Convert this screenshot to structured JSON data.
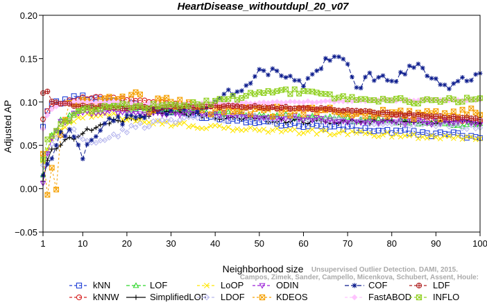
{
  "chart_data": {
    "type": "line",
    "title": "HeartDisease_withoutdupl_20_v07",
    "xlabel": "Neighborhood size",
    "ylabel": "Adjusted AP",
    "xlim": [
      1,
      100
    ],
    "ylim": [
      -0.05,
      0.2
    ],
    "x_ticks": [
      1,
      10,
      20,
      30,
      40,
      50,
      60,
      70,
      80,
      90,
      100
    ],
    "y_ticks": [
      -0.05,
      0.0,
      0.05,
      0.1,
      0.15,
      0.2
    ],
    "y_tick_labels": [
      "−0.05",
      "0.00",
      "0.05",
      "0.10",
      "0.15",
      "0.20"
    ],
    "grid": false,
    "legend_position": "bottom",
    "watermark": "Campos, Zimek, Sander, Campello, Micenkova, Schubert, Assent, Houle: Unsupervised Outlier Detection. DAMI, 2015.",
    "series": [
      {
        "name": "kNN",
        "color": "#1f3fd6",
        "marker": "square",
        "dash": "4,3",
        "anchors": [
          [
            1,
            0.07
          ],
          [
            2,
            0.092
          ],
          [
            3,
            0.098
          ],
          [
            5,
            0.1
          ],
          [
            8,
            0.104
          ],
          [
            10,
            0.106
          ],
          [
            15,
            0.103
          ],
          [
            20,
            0.098
          ],
          [
            25,
            0.093
          ],
          [
            30,
            0.089
          ],
          [
            40,
            0.082
          ],
          [
            50,
            0.078
          ],
          [
            60,
            0.073
          ],
          [
            70,
            0.07
          ],
          [
            80,
            0.066
          ],
          [
            90,
            0.063
          ],
          [
            100,
            0.061
          ]
        ],
        "jitter": 0.003
      },
      {
        "name": "kNNW",
        "color": "#d62020",
        "marker": "circle",
        "dash": "4,3",
        "anchors": [
          [
            1,
            0.08
          ],
          [
            2,
            0.09
          ],
          [
            3,
            0.095
          ],
          [
            5,
            0.099
          ],
          [
            8,
            0.102
          ],
          [
            10,
            0.104
          ],
          [
            15,
            0.105
          ],
          [
            20,
            0.103
          ],
          [
            25,
            0.1
          ],
          [
            30,
            0.098
          ],
          [
            40,
            0.096
          ],
          [
            50,
            0.094
          ],
          [
            60,
            0.092
          ],
          [
            70,
            0.089
          ],
          [
            80,
            0.085
          ],
          [
            90,
            0.081
          ],
          [
            100,
            0.078
          ]
        ],
        "jitter": 0.0015
      },
      {
        "name": "LOF",
        "color": "#2fd62a",
        "marker": "triangle",
        "dash": "5,3",
        "anchors": [
          [
            1,
            0.016
          ],
          [
            2,
            0.045
          ],
          [
            3,
            0.06
          ],
          [
            5,
            0.078
          ],
          [
            8,
            0.088
          ],
          [
            10,
            0.092
          ],
          [
            15,
            0.095
          ],
          [
            20,
            0.093
          ],
          [
            25,
            0.092
          ],
          [
            30,
            0.09
          ],
          [
            40,
            0.087
          ],
          [
            50,
            0.085
          ],
          [
            60,
            0.083
          ],
          [
            70,
            0.08
          ],
          [
            80,
            0.078
          ],
          [
            90,
            0.075
          ],
          [
            100,
            0.074
          ]
        ],
        "jitter": 0.0025
      },
      {
        "name": "SimplifiedLOF",
        "color": "#000000",
        "marker": "plus",
        "dash": "",
        "anchors": [
          [
            1,
            0.01
          ],
          [
            2,
            0.03
          ],
          [
            3,
            0.045
          ],
          [
            5,
            0.052
          ],
          [
            8,
            0.06
          ],
          [
            10,
            0.065
          ],
          [
            15,
            0.075
          ],
          [
            20,
            0.08
          ],
          [
            25,
            0.085
          ],
          [
            30,
            0.088
          ],
          [
            40,
            0.083
          ],
          [
            50,
            0.08
          ],
          [
            60,
            0.078
          ],
          [
            70,
            0.077
          ],
          [
            80,
            0.077
          ],
          [
            90,
            0.077
          ],
          [
            100,
            0.078
          ]
        ],
        "jitter": 0.003
      },
      {
        "name": "LoOP",
        "color": "#ffe600",
        "marker": "x",
        "dash": "4,3",
        "anchors": [
          [
            1,
            0.03
          ],
          [
            2,
            0.045
          ],
          [
            3,
            0.055
          ],
          [
            5,
            0.07
          ],
          [
            8,
            0.08
          ],
          [
            10,
            0.083
          ],
          [
            15,
            0.085
          ],
          [
            20,
            0.082
          ],
          [
            25,
            0.078
          ],
          [
            30,
            0.075
          ],
          [
            40,
            0.07
          ],
          [
            50,
            0.068
          ],
          [
            60,
            0.066
          ],
          [
            70,
            0.064
          ],
          [
            80,
            0.062
          ],
          [
            90,
            0.06
          ],
          [
            100,
            0.059
          ]
        ],
        "jitter": 0.003
      },
      {
        "name": "LDOF",
        "color": "#b8b8ee",
        "marker": "diamond",
        "dash": "4,3",
        "anchors": [
          [
            1,
            0.025
          ],
          [
            2,
            0.04
          ],
          [
            3,
            0.05
          ],
          [
            5,
            0.06
          ],
          [
            8,
            0.068
          ],
          [
            10,
            0.055
          ],
          [
            15,
            0.055
          ],
          [
            20,
            0.068
          ],
          [
            25,
            0.075
          ],
          [
            30,
            0.08
          ],
          [
            40,
            0.082
          ],
          [
            50,
            0.082
          ],
          [
            60,
            0.08
          ],
          [
            70,
            0.078
          ],
          [
            80,
            0.076
          ],
          [
            90,
            0.074
          ],
          [
            100,
            0.072
          ]
        ],
        "jitter": 0.004
      },
      {
        "name": "ODIN",
        "color": "#9a20d6",
        "marker": "triangle-down",
        "dash": "4,3",
        "anchors": [
          [
            1,
            0.006
          ],
          [
            2,
            0.04
          ],
          [
            3,
            0.06
          ],
          [
            5,
            0.075
          ],
          [
            8,
            0.085
          ],
          [
            10,
            0.088
          ],
          [
            15,
            0.09
          ],
          [
            20,
            0.089
          ],
          [
            25,
            0.088
          ],
          [
            30,
            0.087
          ],
          [
            40,
            0.085
          ],
          [
            50,
            0.083
          ],
          [
            60,
            0.081
          ],
          [
            70,
            0.079
          ],
          [
            80,
            0.077
          ],
          [
            90,
            0.076
          ],
          [
            100,
            0.075
          ]
        ],
        "jitter": 0.003
      },
      {
        "name": "KDEOS",
        "color": "#f5a000",
        "marker": "square-x",
        "dash": "3,3",
        "anchors": [
          [
            1,
            0.04
          ],
          [
            2,
            -0.008
          ],
          [
            3,
            0.02
          ],
          [
            4,
            0.005
          ],
          [
            5,
            0.06
          ],
          [
            7,
            0.095
          ],
          [
            10,
            0.1
          ],
          [
            12,
            0.09
          ],
          [
            15,
            0.11
          ],
          [
            20,
            0.1
          ],
          [
            22,
            0.115
          ],
          [
            25,
            0.09
          ],
          [
            28,
            0.105
          ],
          [
            30,
            0.1
          ],
          [
            35,
            0.095
          ],
          [
            40,
            0.09
          ],
          [
            50,
            0.088
          ],
          [
            60,
            0.09
          ],
          [
            70,
            0.088
          ],
          [
            80,
            0.087
          ],
          [
            90,
            0.085
          ],
          [
            100,
            0.087
          ]
        ],
        "jitter": 0.006
      },
      {
        "name": "COF",
        "color": "#0a1a8c",
        "marker": "asterisk",
        "dash": "6,3",
        "anchors": [
          [
            1,
            0.015
          ],
          [
            3,
            0.04
          ],
          [
            5,
            0.06
          ],
          [
            8,
            0.065
          ],
          [
            10,
            0.04
          ],
          [
            12,
            0.06
          ],
          [
            15,
            0.075
          ],
          [
            20,
            0.08
          ],
          [
            25,
            0.088
          ],
          [
            30,
            0.092
          ],
          [
            35,
            0.092
          ],
          [
            40,
            0.1
          ],
          [
            45,
            0.115
          ],
          [
            50,
            0.132
          ],
          [
            54,
            0.137
          ],
          [
            57,
            0.128
          ],
          [
            60,
            0.118
          ],
          [
            63,
            0.138
          ],
          [
            66,
            0.148
          ],
          [
            68,
            0.15
          ],
          [
            70,
            0.14
          ],
          [
            72,
            0.118
          ],
          [
            75,
            0.13
          ],
          [
            78,
            0.125
          ],
          [
            82,
            0.13
          ],
          [
            85,
            0.14
          ],
          [
            88,
            0.135
          ],
          [
            92,
            0.12
          ],
          [
            95,
            0.122
          ],
          [
            98,
            0.125
          ],
          [
            100,
            0.128
          ]
        ],
        "jitter": 0.006
      },
      {
        "name": "FastABOD",
        "color": "#ffc4ff",
        "marker": "diamond-filled",
        "dash": "4,3",
        "anchors": [
          [
            1,
            0.07
          ],
          [
            2,
            0.085
          ],
          [
            3,
            0.092
          ],
          [
            5,
            0.097
          ],
          [
            8,
            0.1
          ],
          [
            10,
            0.1
          ],
          [
            15,
            0.1
          ],
          [
            20,
            0.099
          ],
          [
            25,
            0.098
          ],
          [
            30,
            0.097
          ],
          [
            40,
            0.098
          ],
          [
            50,
            0.099
          ],
          [
            60,
            0.1
          ],
          [
            70,
            0.101
          ],
          [
            80,
            0.102
          ],
          [
            90,
            0.102
          ],
          [
            100,
            0.102
          ]
        ],
        "jitter": 0.001
      },
      {
        "name": "LDF",
        "color": "#b02020",
        "marker": "circle-plus",
        "dash": "4,3",
        "anchors": [
          [
            1,
            0.11
          ],
          [
            2,
            0.111
          ],
          [
            3,
            0.1
          ],
          [
            5,
            0.098
          ],
          [
            8,
            0.096
          ],
          [
            10,
            0.095
          ],
          [
            15,
            0.094
          ],
          [
            20,
            0.093
          ],
          [
            25,
            0.093
          ],
          [
            30,
            0.094
          ],
          [
            40,
            0.095
          ],
          [
            50,
            0.094
          ],
          [
            60,
            0.093
          ],
          [
            70,
            0.09
          ],
          [
            80,
            0.087
          ],
          [
            90,
            0.083
          ],
          [
            100,
            0.08
          ]
        ],
        "jitter": 0.0015
      },
      {
        "name": "INFLO",
        "color": "#90d020",
        "marker": "square-x",
        "dash": "4,3",
        "anchors": [
          [
            1,
            0.033
          ],
          [
            2,
            0.055
          ],
          [
            3,
            0.06
          ],
          [
            5,
            0.072
          ],
          [
            8,
            0.085
          ],
          [
            10,
            0.09
          ],
          [
            15,
            0.095
          ],
          [
            20,
            0.096
          ],
          [
            25,
            0.095
          ],
          [
            30,
            0.095
          ],
          [
            35,
            0.098
          ],
          [
            40,
            0.1
          ],
          [
            45,
            0.105
          ],
          [
            50,
            0.11
          ],
          [
            55,
            0.112
          ],
          [
            60,
            0.112
          ],
          [
            65,
            0.108
          ],
          [
            70,
            0.104
          ],
          [
            75,
            0.103
          ],
          [
            80,
            0.102
          ],
          [
            85,
            0.101
          ],
          [
            90,
            0.101
          ],
          [
            95,
            0.102
          ],
          [
            100,
            0.104
          ]
        ],
        "jitter": 0.003
      }
    ]
  }
}
